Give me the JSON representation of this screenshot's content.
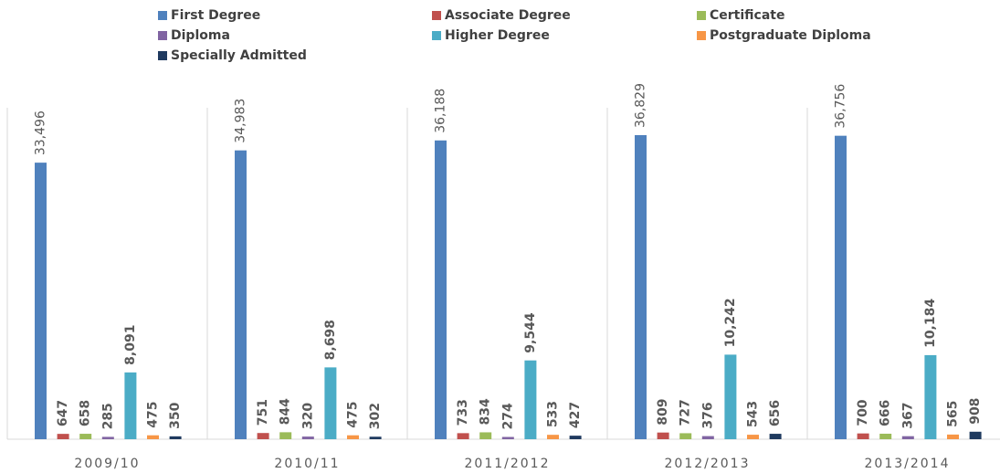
{
  "chart_data": {
    "type": "bar",
    "categories": [
      "2009/10",
      "2010/11",
      "2011/2012",
      "2012/2013",
      "2013/2014"
    ],
    "series": [
      {
        "name": "First Degree",
        "color": "#4f81bd",
        "values": [
          33496,
          34983,
          36188,
          36829,
          36756
        ],
        "value_labels": [
          "33,496",
          "34,983",
          "36,188",
          "36,829",
          "36,756"
        ]
      },
      {
        "name": "Associate Degree",
        "color": "#c0504d",
        "values": [
          647,
          751,
          733,
          809,
          700
        ]
      },
      {
        "name": "Certificate",
        "color": "#9bbb59",
        "values": [
          658,
          844,
          834,
          727,
          666
        ]
      },
      {
        "name": "Diploma",
        "color": "#8064a2",
        "values": [
          285,
          320,
          274,
          376,
          367
        ]
      },
      {
        "name": "Higher Degree",
        "color": "#4bacc6",
        "values": [
          8091,
          8698,
          9544,
          10242,
          10184
        ],
        "value_labels": [
          "8,091",
          "8,698",
          "9,544",
          "10,242",
          "10,184"
        ]
      },
      {
        "name": "Postgraduate Diploma",
        "color": "#f79646",
        "values": [
          475,
          475,
          533,
          543,
          565
        ]
      },
      {
        "name": "Specially Admitted",
        "color": "#1f3a5f",
        "values": [
          350,
          302,
          427,
          656,
          908
        ]
      }
    ],
    "legend": "top"
  }
}
